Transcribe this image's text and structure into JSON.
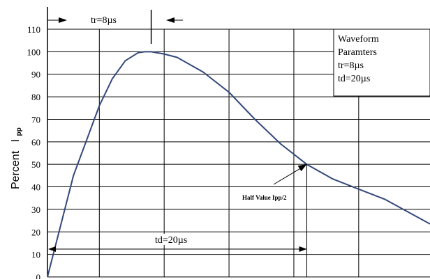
{
  "chart_data": {
    "type": "line",
    "ylabel": "Percent",
    "ylabel_sub": "I",
    "ylabel_subscript": "pp",
    "y_ticks": [
      "0",
      "10",
      "20",
      "30",
      "40",
      "50",
      "60",
      "70",
      "80",
      "90",
      "100",
      "110"
    ],
    "ylim": [
      0,
      110
    ],
    "grid": true,
    "series": [
      {
        "values_note": "",
        "x": [
          0,
          2,
          4,
          5,
          6,
          7,
          7.5,
          8,
          9,
          10,
          12,
          14,
          16,
          18,
          20,
          22,
          24,
          26,
          29.5
        ],
        "y": [
          0,
          45,
          76,
          88,
          96,
          99.6,
          100,
          100,
          99,
          97.5,
          91,
          82,
          70,
          59,
          50,
          43.5,
          39,
          34.5,
          23.5
        ]
      }
    ],
    "xlim": [
      0,
      29.5
    ],
    "annotations": {
      "tr_label": "tr=8µs",
      "td_label": "td=20µs",
      "half_value_label": "Half Value Ipp/2",
      "legend_box": [
        "Waveform",
        "Paramters",
        "tr=8µs",
        "td=20µs"
      ]
    }
  }
}
